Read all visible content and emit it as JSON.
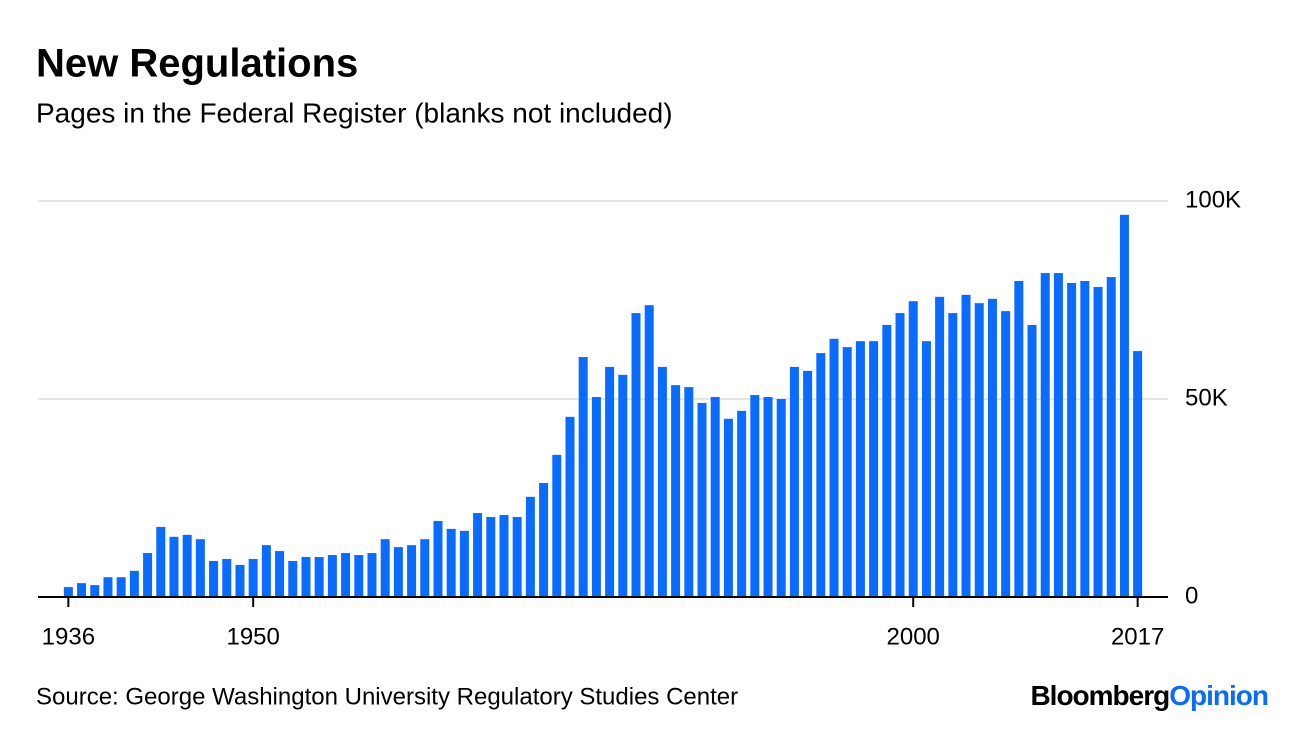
{
  "chart_data": {
    "type": "bar",
    "title": "New Regulations",
    "subtitle": "Pages in the Federal Register (blanks not included)",
    "source": "Source: George Washington University Regulatory Studies Center",
    "brand": {
      "name": "Bloomberg",
      "suffix": "Opinion"
    },
    "color": "#0a6cff",
    "grid": true,
    "x": [
      1936,
      1937,
      1938,
      1939,
      1940,
      1941,
      1942,
      1943,
      1944,
      1945,
      1946,
      1947,
      1948,
      1949,
      1950,
      1951,
      1952,
      1953,
      1954,
      1955,
      1956,
      1957,
      1958,
      1959,
      1960,
      1961,
      1962,
      1963,
      1964,
      1965,
      1966,
      1967,
      1968,
      1969,
      1970,
      1971,
      1972,
      1973,
      1974,
      1975,
      1976,
      1977,
      1978,
      1979,
      1980,
      1981,
      1982,
      1983,
      1984,
      1985,
      1986,
      1987,
      1988,
      1989,
      1990,
      1991,
      1992,
      1993,
      1994,
      1995,
      1996,
      1997,
      1998,
      1999,
      2000,
      2001,
      2002,
      2003,
      2004,
      2005,
      2006,
      2007,
      2008,
      2009,
      2010,
      2011,
      2012,
      2013,
      2014,
      2015,
      2016,
      2017
    ],
    "values": [
      2500,
      3500,
      3000,
      5000,
      5000,
      6600,
      11100,
      17700,
      15200,
      15700,
      14600,
      9100,
      9600,
      8100,
      9600,
      13100,
      11600,
      9100,
      10100,
      10100,
      10600,
      11100,
      10600,
      11100,
      14600,
      12600,
      13100,
      14600,
      19200,
      17200,
      16700,
      21200,
      20200,
      20700,
      20200,
      25300,
      28800,
      35900,
      45500,
      60600,
      50500,
      58100,
      56100,
      71700,
      73700,
      58100,
      53500,
      53000,
      49000,
      50500,
      45000,
      47000,
      51000,
      50500,
      50000,
      58100,
      57100,
      61600,
      65200,
      63100,
      64600,
      64600,
      68700,
      71700,
      74700,
      64600,
      75800,
      71700,
      76300,
      74200,
      75300,
      72200,
      79800,
      68700,
      81800,
      81800,
      79300,
      79800,
      78300,
      80800,
      96500,
      62100
    ],
    "xlim": [
      1933.7,
      2019.3
    ],
    "xticks": [
      1936,
      1950,
      2000,
      2017
    ],
    "ylim": [
      0,
      100000
    ],
    "yticks": [
      0,
      {
        "value": 50000,
        "label": "50K"
      },
      {
        "value": 100000,
        "label": "100K"
      }
    ]
  }
}
